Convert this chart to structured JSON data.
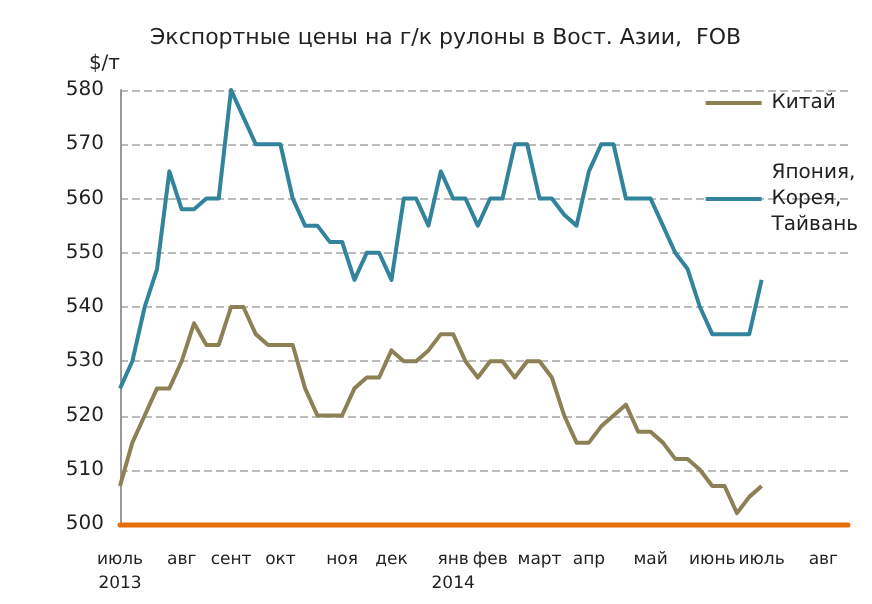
{
  "chart_data": {
    "type": "line",
    "title": "Экспортные цены на г/к рулоны в Вост. Азии,  FOB",
    "ylabel": "$/т",
    "categories": [
      "июль\n2013",
      null,
      null,
      null,
      null,
      "авг",
      null,
      null,
      null,
      "сент",
      null,
      null,
      null,
      "окт",
      null,
      null,
      null,
      null,
      "ноя",
      null,
      null,
      null,
      "дек",
      null,
      null,
      null,
      null,
      "янв\n2014",
      null,
      null,
      "фев",
      null,
      null,
      null,
      "март",
      null,
      null,
      null,
      "апр",
      null,
      null,
      null,
      null,
      "май",
      null,
      null,
      null,
      null,
      "июнь",
      null,
      null,
      null,
      "июль",
      null,
      null,
      null,
      null,
      "авг",
      null,
      null
    ],
    "series": [
      {
        "name": "Китай",
        "color": "#8c8155",
        "values": [
          507,
          515,
          520,
          525,
          525,
          530,
          537,
          533,
          533,
          540,
          540,
          535,
          533,
          533,
          533,
          525,
          520,
          520,
          520,
          525,
          527,
          527,
          532,
          530,
          530,
          532,
          535,
          535,
          530,
          527,
          530,
          530,
          527,
          530,
          530,
          527,
          520,
          515,
          515,
          518,
          520,
          522,
          517,
          517,
          515,
          512,
          512,
          510,
          507,
          507,
          502,
          505,
          507,
          null,
          null,
          null,
          null,
          null,
          null,
          null
        ]
      },
      {
        "name": "Япония,\nКорея,\nТайвань",
        "color": "#31849b",
        "values": [
          525,
          530,
          540,
          547,
          565,
          558,
          558,
          560,
          560,
          580,
          575,
          570,
          570,
          570,
          560,
          555,
          555,
          552,
          552,
          545,
          550,
          550,
          545,
          560,
          560,
          555,
          565,
          560,
          560,
          555,
          560,
          560,
          570,
          570,
          560,
          560,
          557,
          555,
          565,
          570,
          570,
          560,
          560,
          560,
          555,
          550,
          547,
          540,
          535,
          535,
          535,
          535,
          545,
          null,
          null,
          null,
          null,
          null,
          null,
          null
        ]
      }
    ],
    "ylim": [
      500,
      580
    ],
    "yticks": [
      500,
      510,
      520,
      530,
      540,
      550,
      560,
      570,
      580
    ],
    "grid": "y",
    "line_style": "solid",
    "marker": "none",
    "legend": "right"
  }
}
